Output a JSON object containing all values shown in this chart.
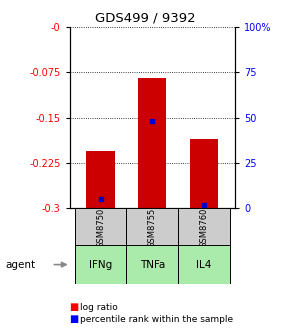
{
  "title": "GDS499 / 9392",
  "samples": [
    "GSM8750",
    "GSM8755",
    "GSM8760"
  ],
  "agents": [
    "IFNg",
    "TNFa",
    "IL4"
  ],
  "log_ratio": [
    -0.205,
    -0.085,
    -0.185
  ],
  "percentile_rank": [
    5.0,
    48.0,
    2.0
  ],
  "ylim_left": [
    -0.3,
    0.0
  ],
  "ylim_right": [
    0.0,
    100.0
  ],
  "yticks_left": [
    -0.3,
    -0.225,
    -0.15,
    -0.075,
    0.0
  ],
  "ytick_labels_left": [
    "-0.3",
    "-0.225",
    "-0.15",
    "-0.075",
    "-0"
  ],
  "yticks_right": [
    0,
    25,
    50,
    75,
    100
  ],
  "ytick_labels_right": [
    "0",
    "25",
    "50",
    "75",
    "100%"
  ],
  "bar_color": "#cc0000",
  "percentile_color": "#0000cc",
  "sample_cell_color": "#cccccc",
  "agent_cell_color": "#aaeaaa",
  "bar_width": 0.55,
  "legend_red_label": "log ratio",
  "legend_blue_label": "percentile rank within the sample"
}
